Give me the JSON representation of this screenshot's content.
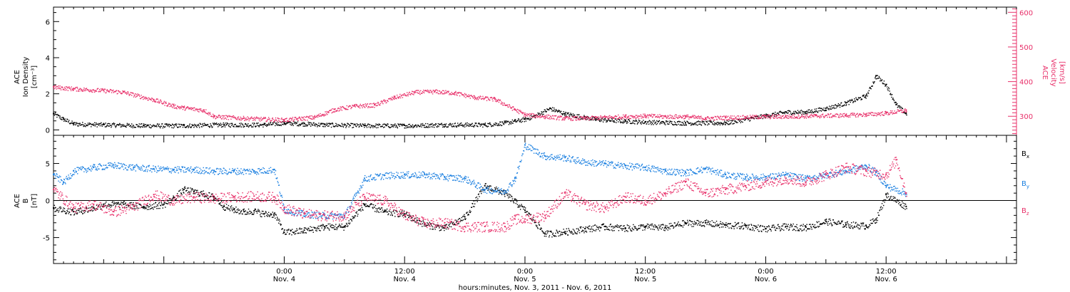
{
  "colors": {
    "black": "#000000",
    "pink": "#e8306a",
    "blue": "#1a7fe0"
  },
  "xaxis": {
    "tick_labels": [
      {
        "time": "0:00",
        "date": "Nov. 4",
        "hour": 24
      },
      {
        "time": "12:00",
        "date": "Nov. 4",
        "hour": 36
      },
      {
        "time": "0:00",
        "date": "Nov. 5",
        "hour": 48
      },
      {
        "time": "12:00",
        "date": "Nov. 5",
        "hour": 60
      },
      {
        "time": "0:00",
        "date": "Nov. 6",
        "hour": 72
      },
      {
        "time": "12:00",
        "date": "Nov. 6",
        "hour": 84
      }
    ],
    "label": "hours:minutes, Nov.  3, 2011 - Nov.  6, 2011",
    "range_hours": [
      1.0,
      97.0
    ]
  },
  "chart_data": [
    {
      "type": "scatter",
      "panel": "top",
      "ylabel_left": [
        "ACE",
        "Ion Density",
        "[cm⁻³]"
      ],
      "ylabel_right": [
        "ACE",
        "Velocity",
        "[km/s]"
      ],
      "left_axis": {
        "ylim": [
          -0.3,
          6.8
        ],
        "ticks": [
          0,
          2,
          4,
          6
        ]
      },
      "right_axis": {
        "ylim": [
          245,
          615
        ],
        "ticks": [
          300,
          400,
          500,
          600
        ]
      },
      "series": [
        {
          "name": "Ion Density",
          "axis": "left",
          "color": "black",
          "x": [
            1.0,
            2.0,
            3.0,
            6.0,
            10.0,
            14.0,
            18.0,
            22.0,
            24.0,
            26.0,
            28.0,
            32.0,
            36.0,
            40.0,
            44.0,
            46.0,
            47.0,
            48.0,
            49.0,
            50.5,
            52.0,
            55.0,
            58.0,
            60.0,
            64.0,
            68.0,
            72.0,
            74.0,
            76.0,
            78.0,
            80.0,
            82.0,
            83.0,
            84.0,
            85.0,
            86.0
          ],
          "y": [
            0.9,
            0.6,
            0.35,
            0.3,
            0.25,
            0.25,
            0.3,
            0.3,
            0.4,
            0.35,
            0.3,
            0.25,
            0.25,
            0.3,
            0.3,
            0.4,
            0.5,
            0.6,
            0.8,
            1.2,
            0.9,
            0.6,
            0.5,
            0.45,
            0.4,
            0.4,
            0.8,
            1.0,
            1.0,
            1.2,
            1.5,
            1.9,
            3.0,
            2.5,
            1.4,
            0.9
          ]
        },
        {
          "name": "Velocity",
          "axis": "right",
          "color": "pink",
          "x": [
            1.0,
            3.0,
            6.0,
            8.0,
            11.0,
            13.0,
            14.0,
            16.0,
            17.0,
            20.0,
            24.0,
            27.0,
            29.0,
            31.0,
            33.0,
            35.0,
            37.0,
            39.0,
            41.0,
            43.0,
            45.0,
            47.0,
            48.0,
            50.0,
            52.0,
            54.0,
            56.0,
            58.0,
            60.0,
            62.0,
            64.0,
            66.0,
            68.0,
            70.0,
            72.0,
            74.0,
            77.0,
            80.0,
            82.0,
            84.0,
            86.0
          ],
          "y": [
            385,
            380,
            375,
            370,
            348,
            330,
            325,
            318,
            300,
            295,
            290,
            298,
            320,
            330,
            333,
            355,
            370,
            372,
            368,
            355,
            350,
            320,
            305,
            300,
            295,
            295,
            298,
            300,
            302,
            300,
            300,
            295,
            297,
            298,
            300,
            300,
            302,
            304,
            306,
            310,
            318
          ]
        }
      ]
    },
    {
      "type": "scatter",
      "panel": "bottom",
      "ylabel_left": [
        "ACE",
        "B",
        "[nT]"
      ],
      "left_axis": {
        "ylim": [
          -8.5,
          8.8
        ],
        "ticks": [
          -5,
          0,
          5
        ]
      },
      "legend_position": "right",
      "series": [
        {
          "name": "Bx",
          "name_main": "B",
          "name_sub": "x",
          "color": "black",
          "x": [
            1.0,
            3.0,
            5.0,
            6.0,
            8.0,
            10.0,
            12.0,
            13.0,
            14.0,
            15.0,
            16.0,
            17.0,
            18.0,
            19.0,
            20.0,
            21.0,
            22.0,
            23.0,
            24.0,
            26.0,
            28.0,
            30.0,
            32.0,
            34.0,
            36.0,
            38.0,
            40.0,
            42.0,
            44.0,
            46.0,
            48.0,
            50.0,
            52.0,
            54.0,
            56.0,
            58.0,
            60.0,
            62.0,
            64.0,
            66.0,
            68.0,
            70.0,
            72.0,
            74.0,
            76.0,
            78.0,
            80.0,
            82.0,
            83.0,
            84.0,
            86.0
          ],
          "y": [
            -1.0,
            -1.5,
            -1.0,
            -0.5,
            -0.5,
            -0.8,
            -0.5,
            0.4,
            1.5,
            1.2,
            0.9,
            0.5,
            -0.8,
            -1.2,
            -1.5,
            -1.4,
            -1.8,
            -1.8,
            -4.3,
            -4.0,
            -3.5,
            -3.5,
            -0.5,
            -1.5,
            -1.8,
            -3.2,
            -3.7,
            -2.2,
            2.0,
            1.0,
            -1.3,
            -4.5,
            -4.2,
            -3.8,
            -3.5,
            -3.7,
            -3.5,
            -3.6,
            -3.0,
            -3.0,
            -3.3,
            -3.4,
            -3.8,
            -3.5,
            -3.6,
            -2.8,
            -3.2,
            -3.4,
            -2.5,
            0.8,
            -0.8
          ]
        },
        {
          "name": "By",
          "name_main": "B",
          "name_sub": "y",
          "color": "blue",
          "x": [
            1.0,
            2.0,
            3.0,
            5.0,
            7.0,
            9.0,
            11.0,
            13.0,
            15.0,
            17.0,
            19.0,
            21.0,
            23.0,
            24.0,
            26.0,
            28.0,
            30.0,
            32.0,
            34.0,
            36.0,
            38.0,
            40.0,
            42.0,
            44.0,
            46.0,
            47.0,
            48.0,
            50.0,
            52.0,
            54.0,
            56.0,
            58.0,
            60.0,
            62.0,
            64.0,
            66.0,
            68.0,
            70.0,
            72.0,
            74.0,
            76.0,
            78.0,
            80.0,
            82.0,
            83.0,
            84.0,
            86.0
          ],
          "y": [
            3.5,
            2.5,
            4.0,
            4.5,
            4.8,
            4.5,
            4.3,
            4.2,
            4.2,
            4.0,
            4.0,
            4.0,
            4.2,
            -1.2,
            -1.8,
            -2.0,
            -2.0,
            3.0,
            3.4,
            3.5,
            3.5,
            3.2,
            3.0,
            1.5,
            1.3,
            3.0,
            7.5,
            6.0,
            5.8,
            5.2,
            5.0,
            4.7,
            4.5,
            4.0,
            3.8,
            4.3,
            3.5,
            3.2,
            3.2,
            3.5,
            3.0,
            3.5,
            4.0,
            4.7,
            3.8,
            2.0,
            1.0
          ]
        },
        {
          "name": "Bz",
          "name_main": "B",
          "name_sub": "z",
          "color": "pink",
          "x": [
            1.0,
            3.0,
            5.0,
            7.0,
            9.0,
            11.0,
            13.0,
            15.0,
            17.0,
            19.0,
            21.0,
            23.0,
            24.0,
            26.0,
            28.0,
            30.0,
            32.0,
            34.0,
            36.0,
            38.0,
            40.0,
            42.0,
            44.0,
            46.0,
            47.0,
            48.0,
            50.0,
            52.0,
            54.0,
            56.0,
            58.0,
            60.0,
            62.0,
            64.0,
            66.0,
            68.0,
            70.0,
            72.0,
            74.0,
            76.0,
            78.0,
            80.0,
            82.0,
            84.0,
            85.0,
            86.0
          ],
          "y": [
            1.5,
            -1.0,
            -0.5,
            -1.5,
            -0.8,
            0.8,
            0.0,
            0.5,
            0.3,
            0.5,
            0.6,
            0.5,
            -1.0,
            -1.8,
            -2.0,
            -2.0,
            0.5,
            0.0,
            -2.0,
            -3.0,
            -3.0,
            -3.5,
            -3.5,
            -3.5,
            -2.5,
            -2.5,
            -2.0,
            1.0,
            -0.5,
            -1.0,
            0.5,
            0.0,
            1.0,
            2.5,
            1.0,
            1.5,
            2.0,
            2.5,
            3.0,
            2.5,
            3.5,
            4.5,
            4.0,
            3.5,
            5.5,
            1.0
          ]
        }
      ]
    }
  ]
}
